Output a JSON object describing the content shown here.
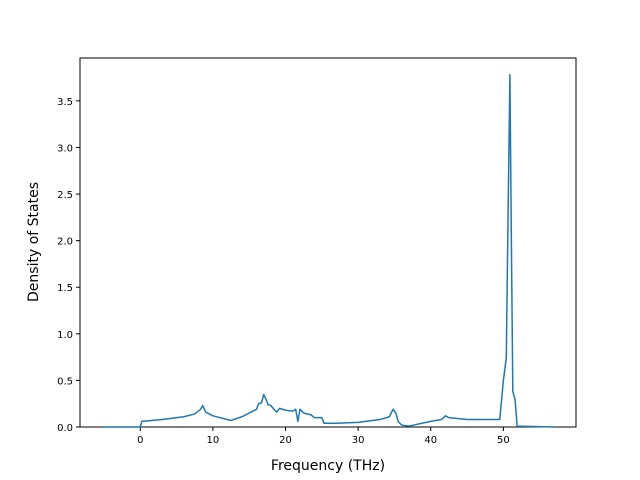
{
  "chart_data": {
    "type": "line",
    "x_label": "Frequency (THz)",
    "y_label": "Density of States",
    "xlim": [
      -8.3,
      60
    ],
    "ylim": [
      0,
      3.96
    ],
    "xticks": [
      0,
      10,
      20,
      30,
      40,
      50
    ],
    "yticks": [
      {
        "value": 0,
        "label": "0.0"
      },
      {
        "value": 0.5,
        "label": "0.5"
      },
      {
        "value": 1,
        "label": "1.0"
      },
      {
        "value": 1.5,
        "label": "1.5"
      },
      {
        "value": 2,
        "label": "2.0"
      },
      {
        "value": 2.5,
        "label": "2.5"
      },
      {
        "value": 3,
        "label": "3.0"
      },
      {
        "value": 3.5,
        "label": "3.5"
      }
    ],
    "series": [
      {
        "color": "#1f77b4",
        "x": [
          -5.2,
          0,
          0.2,
          3,
          6,
          7.5,
          8.3,
          8.6,
          9,
          10,
          12.5,
          14,
          15.5,
          16,
          16.3,
          16.7,
          17,
          17.3,
          17.6,
          18,
          18.5,
          18.8,
          19.2,
          20,
          21,
          21.4,
          21.7,
          22,
          22.5,
          23.5,
          24,
          25,
          25.3,
          27,
          30,
          33,
          34.3,
          34.8,
          35.2,
          35.5,
          36,
          37,
          40,
          41.5,
          42,
          42.5,
          45,
          49.5,
          50,
          50.4,
          50.6,
          50.9,
          51.1,
          51.3,
          51.6,
          51.9,
          57
        ],
        "values": [
          0,
          0,
          0.06,
          0.08,
          0.11,
          0.14,
          0.19,
          0.23,
          0.16,
          0.12,
          0.07,
          0.11,
          0.17,
          0.19,
          0.25,
          0.26,
          0.35,
          0.3,
          0.24,
          0.23,
          0.18,
          0.16,
          0.2,
          0.18,
          0.17,
          0.19,
          0.06,
          0.19,
          0.15,
          0.13,
          0.1,
          0.1,
          0.04,
          0.04,
          0.05,
          0.08,
          0.11,
          0.19,
          0.15,
          0.06,
          0.02,
          0.01,
          0.06,
          0.08,
          0.12,
          0.1,
          0.08,
          0.08,
          0.5,
          0.74,
          2.0,
          3.78,
          2.0,
          0.38,
          0.3,
          0.01,
          0
        ]
      }
    ]
  }
}
